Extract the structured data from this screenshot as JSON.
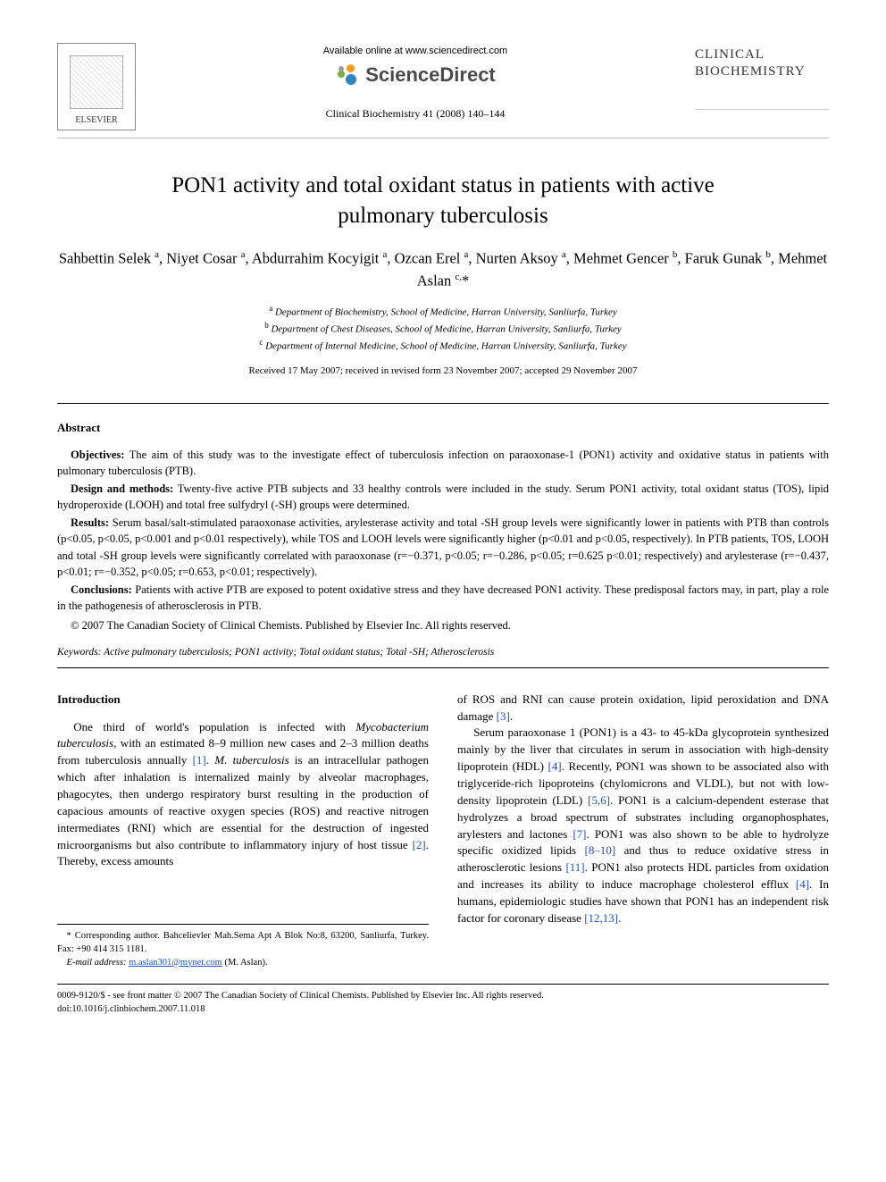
{
  "header": {
    "publisher_name": "ELSEVIER",
    "available_online": "Available online at www.sciencedirect.com",
    "sd_brand": "ScienceDirect",
    "journal_ref": "Clinical Biochemistry 41 (2008) 140–144",
    "journal_brand_line1": "CLINICAL",
    "journal_brand_line2": "BIOCHEMISTRY",
    "sd_mark_colors": [
      "#f59c1a",
      "#7db03b",
      "#2e86c1",
      "#9b9b9b"
    ]
  },
  "title": "PON1 activity and total oxidant status in patients with active pulmonary tuberculosis",
  "authors_html": "Sahbettin Selek <sup>a</sup>, Niyet Cosar <sup>a</sup>, Abdurrahim Kocyigit <sup>a</sup>, Ozcan Erel <sup>a</sup>, Nurten Aksoy <sup>a</sup>, Mehmet Gencer <sup>b</sup>, Faruk Gunak <sup>b</sup>, Mehmet Aslan <sup>c,</sup>*",
  "affiliations": [
    "a Department of Biochemistry, School of Medicine, Harran University, Sanliurfa, Turkey",
    "b Department of Chest Diseases, School of Medicine, Harran University, Sanliurfa, Turkey",
    "c Department of Internal Medicine, School of Medicine, Harran University, Sanliurfa, Turkey"
  ],
  "dates": "Received 17 May 2007; received in revised form 23 November 2007; accepted 29 November 2007",
  "abstract": {
    "heading": "Abstract",
    "objectives_label": "Objectives:",
    "objectives": "The aim of this study was to the investigate effect of tuberculosis infection on paraoxonase-1 (PON1) activity and oxidative status in patients with pulmonary tuberculosis (PTB).",
    "design_label": "Design and methods:",
    "design": "Twenty-five active PTB subjects and 33 healthy controls were included in the study. Serum PON1 activity, total oxidant status (TOS), lipid hydroperoxide (LOOH) and total free sulfydryl (-SH) groups were determined.",
    "results_label": "Results:",
    "results": "Serum basal/salt-stimulated paraoxonase activities, arylesterase activity and total -SH group levels were significantly lower in patients with PTB than controls (p<0.05, p<0.05, p<0.001 and p<0.01 respectively), while TOS and LOOH levels were significantly higher (p<0.01 and p<0.05, respectively). In PTB patients, TOS, LOOH and total -SH group levels were significantly correlated with paraoxonase (r=−0.371, p<0.05; r=−0.286, p<0.05; r=0.625 p<0.01; respectively) and arylesterase (r=−0.437, p<0.01; r=−0.352, p<0.05; r=0.653, p<0.01; respectively).",
    "conclusions_label": "Conclusions:",
    "conclusions": "Patients with active PTB are exposed to potent oxidative stress and they have decreased PON1 activity. These predisposal factors may, in part, play a role in the pathogenesis of atherosclerosis in PTB.",
    "copyright": "© 2007 The Canadian Society of Clinical Chemists. Published by Elsevier Inc. All rights reserved."
  },
  "keywords": {
    "label": "Keywords:",
    "text": "Active pulmonary tuberculosis; PON1 activity; Total oxidant status; Total -SH; Atherosclerosis"
  },
  "body": {
    "intro_head": "Introduction",
    "col1_p1_a": "One third of world's population is infected with ",
    "col1_p1_ital1": "Mycobacterium tuberculosis",
    "col1_p1_b": ", with an estimated 8–9 million new cases and 2–3 million deaths from tuberculosis annually ",
    "col1_p1_cite1": "[1]",
    "col1_p1_c": ". ",
    "col1_p1_ital2": "M. tuberculosis",
    "col1_p1_d": " is an intracellular pathogen which after inhalation is internalized mainly by alveolar macrophages, phagocytes, then undergo respiratory burst resulting in the production of capacious amounts of reactive oxygen species (ROS) and reactive nitrogen intermediates (RNI) which are essential for the destruction of ingested microorganisms but also contribute to inflammatory injury of host tissue ",
    "col1_p1_cite2": "[2]",
    "col1_p1_e": ". Thereby, excess amounts",
    "col2_p0": "of ROS and RNI can cause protein oxidation, lipid peroxidation and DNA damage ",
    "col2_p0_cite": "[3]",
    "col2_p0_end": ".",
    "col2_p1_a": "Serum paraoxonase 1 (PON1) is a 43- to 45-kDa glycoprotein synthesized mainly by the liver that circulates in serum in association with high-density lipoprotein (HDL) ",
    "col2_p1_cite1": "[4]",
    "col2_p1_b": ". Recently, PON1 was shown to be associated also with triglyceride-rich lipoproteins (chylomicrons and VLDL), but not with low-density lipoprotein (LDL) ",
    "col2_p1_cite2": "[5,6]",
    "col2_p1_c": ". PON1 is a calcium-dependent esterase that hydrolyzes a broad spectrum of substrates including organophosphates, arylesters and lactones ",
    "col2_p1_cite3": "[7]",
    "col2_p1_d": ". PON1 was also shown to be able to hydrolyze specific oxidized lipids ",
    "col2_p1_cite4": "[8–10]",
    "col2_p1_e": " and thus to reduce oxidative stress in atherosclerotic lesions ",
    "col2_p1_cite5": "[11]",
    "col2_p1_f": ". PON1 also protects HDL particles from oxidation and increases its ability to induce macrophage cholesterol efflux ",
    "col2_p1_cite6": "[4]",
    "col2_p1_g": ". In humans, epidemiologic studies have shown that PON1 has an independent risk factor for coronary disease ",
    "col2_p1_cite7": "[12,13]",
    "col2_p1_h": "."
  },
  "footnotes": {
    "corr": "* Corresponding author. Bahcelievler Mah.Sema Apt A Blok No:8, 63200, Sanliurfa, Turkey. Fax: +90 414 315 1181.",
    "email_label": "E-mail address:",
    "email": "m.aslan301@mynet.com",
    "email_paren": "(M. Aslan)."
  },
  "doi": {
    "line1": "0009-9120/$ - see front matter © 2007 The Canadian Society of Clinical Chemists. Published by Elsevier Inc. All rights reserved.",
    "line2": "doi:10.1016/j.clinbiochem.2007.11.018"
  },
  "colors": {
    "link": "#1a4fc9",
    "text": "#000000",
    "rule": "#000000"
  }
}
